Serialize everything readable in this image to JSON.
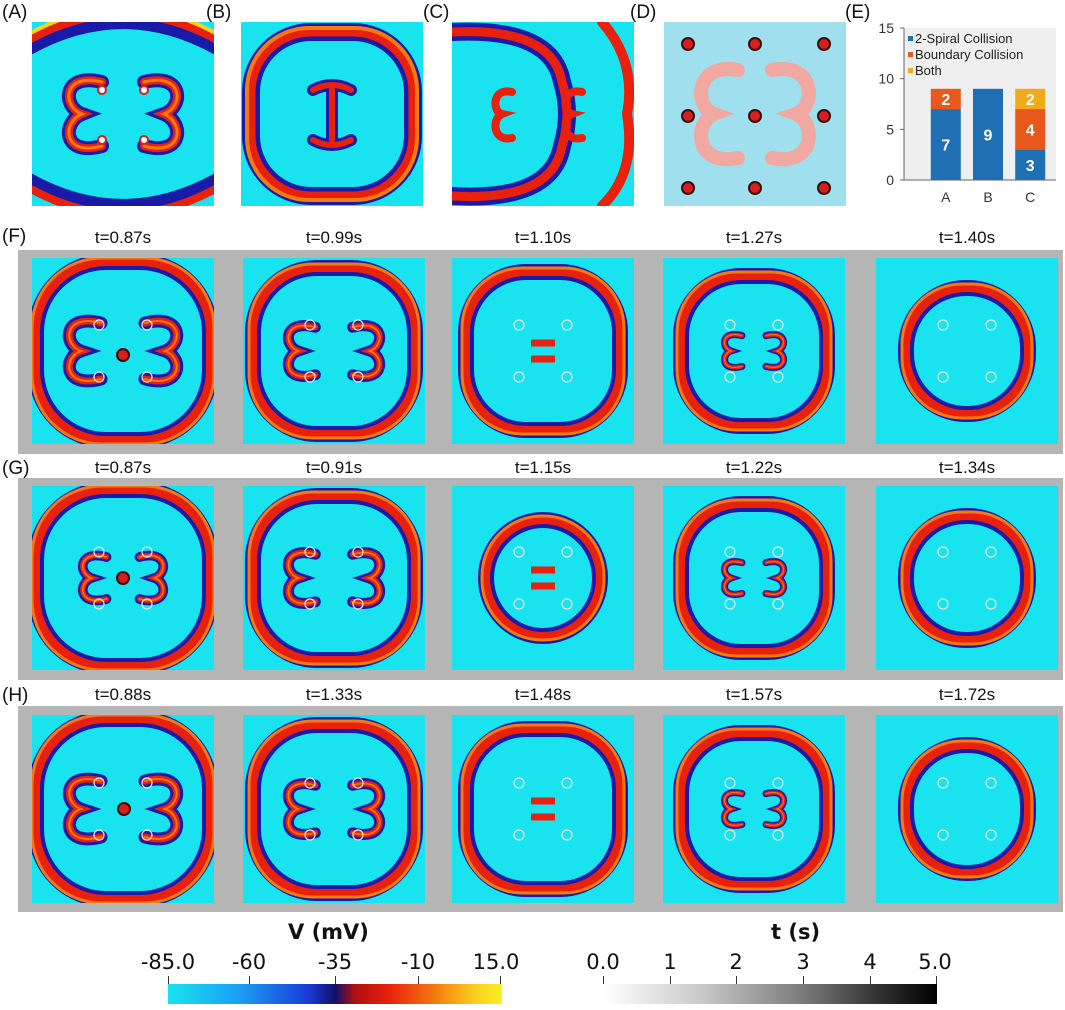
{
  "panel_labels": {
    "A": "(A)",
    "B": "(B)",
    "C": "(C)",
    "D": "(D)",
    "E": "(E)",
    "F": "(F)",
    "G": "(G)",
    "H": "(H)"
  },
  "rows": {
    "F": {
      "times": [
        "t=0.87s",
        "t=0.99s",
        "t=1.10s",
        "t=1.27s",
        "t=1.40s"
      ]
    },
    "G": {
      "times": [
        "t=0.87s",
        "t=0.91s",
        "t=1.15s",
        "t=1.22s",
        "t=1.34s"
      ]
    },
    "H": {
      "times": [
        "t=0.88s",
        "t=1.33s",
        "t=1.48s",
        "t=1.57s",
        "t=1.72s"
      ]
    }
  },
  "colorbars": {
    "voltage": {
      "title": "V (mV)",
      "ticks": [
        "-85.0",
        "-60",
        "-35",
        "-10",
        "15.0"
      ]
    },
    "time": {
      "title": "t (s)",
      "ticks": [
        "0.0",
        "1",
        "2",
        "3",
        "4",
        "5.0"
      ]
    }
  },
  "colors": {
    "resting": "#19e3ee",
    "wave_dark": "#1a1aa8",
    "wave_red": "#e8200c",
    "wave_orange": "#f57a10",
    "wave_yellow": "#f8d020",
    "frame_gray": "#b5b5b5",
    "pacing_site": "#d42020"
  },
  "chart_data": {
    "type": "bar",
    "stacked": true,
    "categories": [
      "A",
      "B",
      "C"
    ],
    "series": [
      {
        "name": "2-Spiral Collision",
        "color": "#1f6fb5",
        "values": [
          7,
          9,
          3
        ]
      },
      {
        "name": "Boundary Collision",
        "color": "#e8581c",
        "values": [
          2,
          0,
          4
        ]
      },
      {
        "name": "Both",
        "color": "#f2aa1a",
        "values": [
          0,
          0,
          2
        ]
      }
    ],
    "data_labels": [
      [
        "7",
        "9",
        "3"
      ],
      [
        "2",
        "",
        "4"
      ],
      [
        "",
        "",
        "2"
      ]
    ],
    "ylim": [
      0,
      15
    ],
    "yticks": [
      "0",
      "5",
      "10",
      "15"
    ],
    "legend_position": "top",
    "grid": false
  }
}
